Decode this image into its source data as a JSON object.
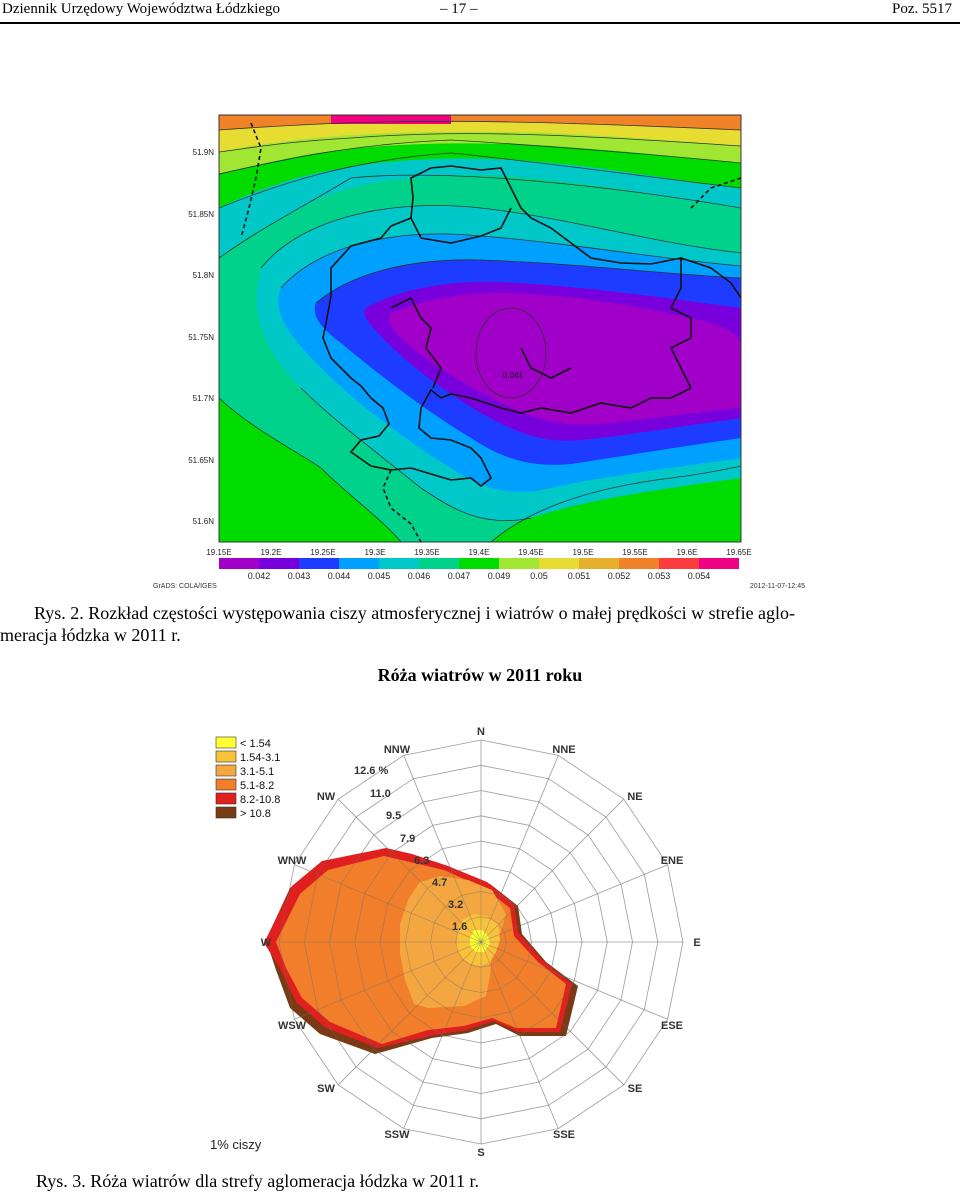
{
  "header": {
    "left": "Dziennik Urzędowy Województwa Łódzkiego",
    "center": "– 17 –",
    "right": "Poz. 5517"
  },
  "figure2": {
    "y_ticks": [
      "51.9N",
      "51.85N",
      "51.8N",
      "51.75N",
      "51.7N",
      "51.65N",
      "51.6N"
    ],
    "x_ticks": [
      "19.15E",
      "19.2E",
      "19.25E",
      "19.3E",
      "19.35E",
      "19.4E",
      "19.45E",
      "19.5E",
      "19.55E",
      "19.6E",
      "19.65E"
    ],
    "contour_label": "0.041",
    "legend_values": [
      "0.042",
      "0.043",
      "0.044",
      "0.045",
      "0.046",
      "0.047",
      "0.049",
      "0.05",
      "0.051",
      "0.052",
      "0.053",
      "0.054"
    ],
    "legend_colors": [
      "#a000c8",
      "#7800dc",
      "#1e3cff",
      "#00a0ff",
      "#00c8c8",
      "#00d28c",
      "#00dc00",
      "#a0e632",
      "#e6dc32",
      "#e6af2d",
      "#f08228",
      "#fa3c3c",
      "#f00082"
    ],
    "footer_left": "GrADS: COLA/IGES",
    "footer_right": "2012-11-07-12:45",
    "caption_line1": "Rys. 2. Rozkład częstości występowania ciszy atmosferycznej i wiatrów o małej prędkości w strefie aglo-",
    "caption_line2": "meracja łódzka w 2011 r."
  },
  "figure3": {
    "title": "Róża wiatrów w 2011 roku",
    "legend": [
      {
        "label": "< 1.54",
        "color": "#ffff33"
      },
      {
        "label": "1.54-3.1",
        "color": "#f8c23a"
      },
      {
        "label": "3.1-5.1",
        "color": "#f4a640"
      },
      {
        "label": "5.1-8.2",
        "color": "#f07e2a"
      },
      {
        "label": "8.2-10.8",
        "color": "#e0201e"
      },
      {
        "label": "> 10.8",
        "color": "#7a3a14"
      }
    ],
    "directions": [
      "N",
      "NNE",
      "NE",
      "ENE",
      "E",
      "ESE",
      "SE",
      "SSE",
      "S",
      "SSW",
      "SW",
      "WSW",
      "W",
      "WNW",
      "NW",
      "NNW"
    ],
    "ring_labels": [
      "1.6",
      "3.2",
      "4.7",
      "6.3",
      "7.9",
      "9.5",
      "11.0",
      "12.6 %"
    ],
    "calm_label": "1% ciszy",
    "caption": "Rys. 3. Róża wiatrów dla strefy aglomeracja łódzka w 2011 r."
  }
}
